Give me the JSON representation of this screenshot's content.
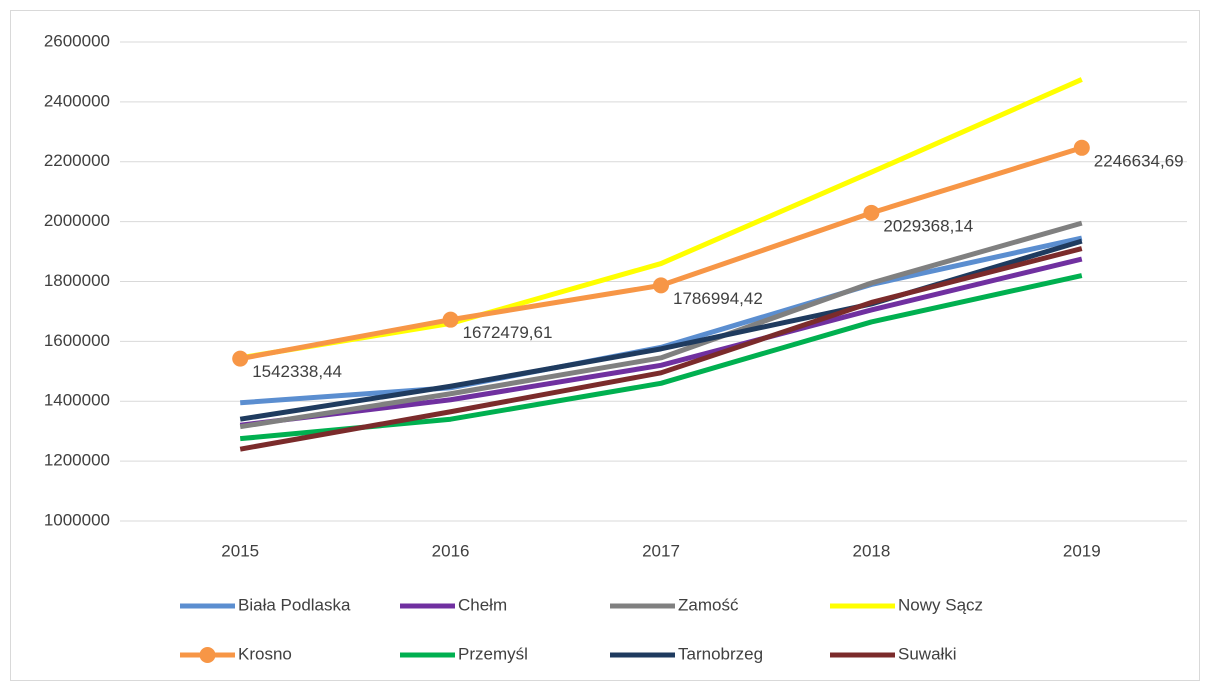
{
  "chart_data": {
    "type": "line",
    "categories": [
      "2015",
      "2016",
      "2017",
      "2018",
      "2019"
    ],
    "ylim": [
      1000000,
      2600000
    ],
    "yticks": [
      1000000,
      1200000,
      1400000,
      1600000,
      1800000,
      2000000,
      2200000,
      2400000,
      2600000
    ],
    "grid": true,
    "legend": "bottom",
    "series": [
      {
        "name": "Biała Podlaska",
        "color": "#5b8ed0",
        "values": [
          1395000,
          1445000,
          1580000,
          1790000,
          1945000
        ]
      },
      {
        "name": "Chełm",
        "color": "#7030a0",
        "values": [
          1320000,
          1405000,
          1520000,
          1705000,
          1875000
        ]
      },
      {
        "name": "Zamość",
        "color": "#808080",
        "values": [
          1315000,
          1425000,
          1545000,
          1795000,
          1995000
        ]
      },
      {
        "name": "Nowy Sącz",
        "color": "#ffff00",
        "values": [
          1545000,
          1660000,
          1860000,
          2165000,
          2475000
        ]
      },
      {
        "name": "Krosno",
        "color": "#f79646",
        "marker": "circle",
        "values": [
          1542338.44,
          1672479.61,
          1786994.42,
          2029368.14,
          2246634.69
        ],
        "value_labels": [
          "1542338,44",
          "1672479,61",
          "1786994,42",
          "2029368,14",
          "2246634,69"
        ]
      },
      {
        "name": "Przemyśl",
        "color": "#00b050",
        "values": [
          1275000,
          1340000,
          1460000,
          1665000,
          1820000
        ]
      },
      {
        "name": "Tarnobrzeg",
        "color": "#1f3b5f",
        "values": [
          1340000,
          1450000,
          1575000,
          1725000,
          1935000
        ]
      },
      {
        "name": "Suwałki",
        "color": "#7b2b2b",
        "values": [
          1240000,
          1365000,
          1495000,
          1730000,
          1910000
        ]
      }
    ]
  }
}
